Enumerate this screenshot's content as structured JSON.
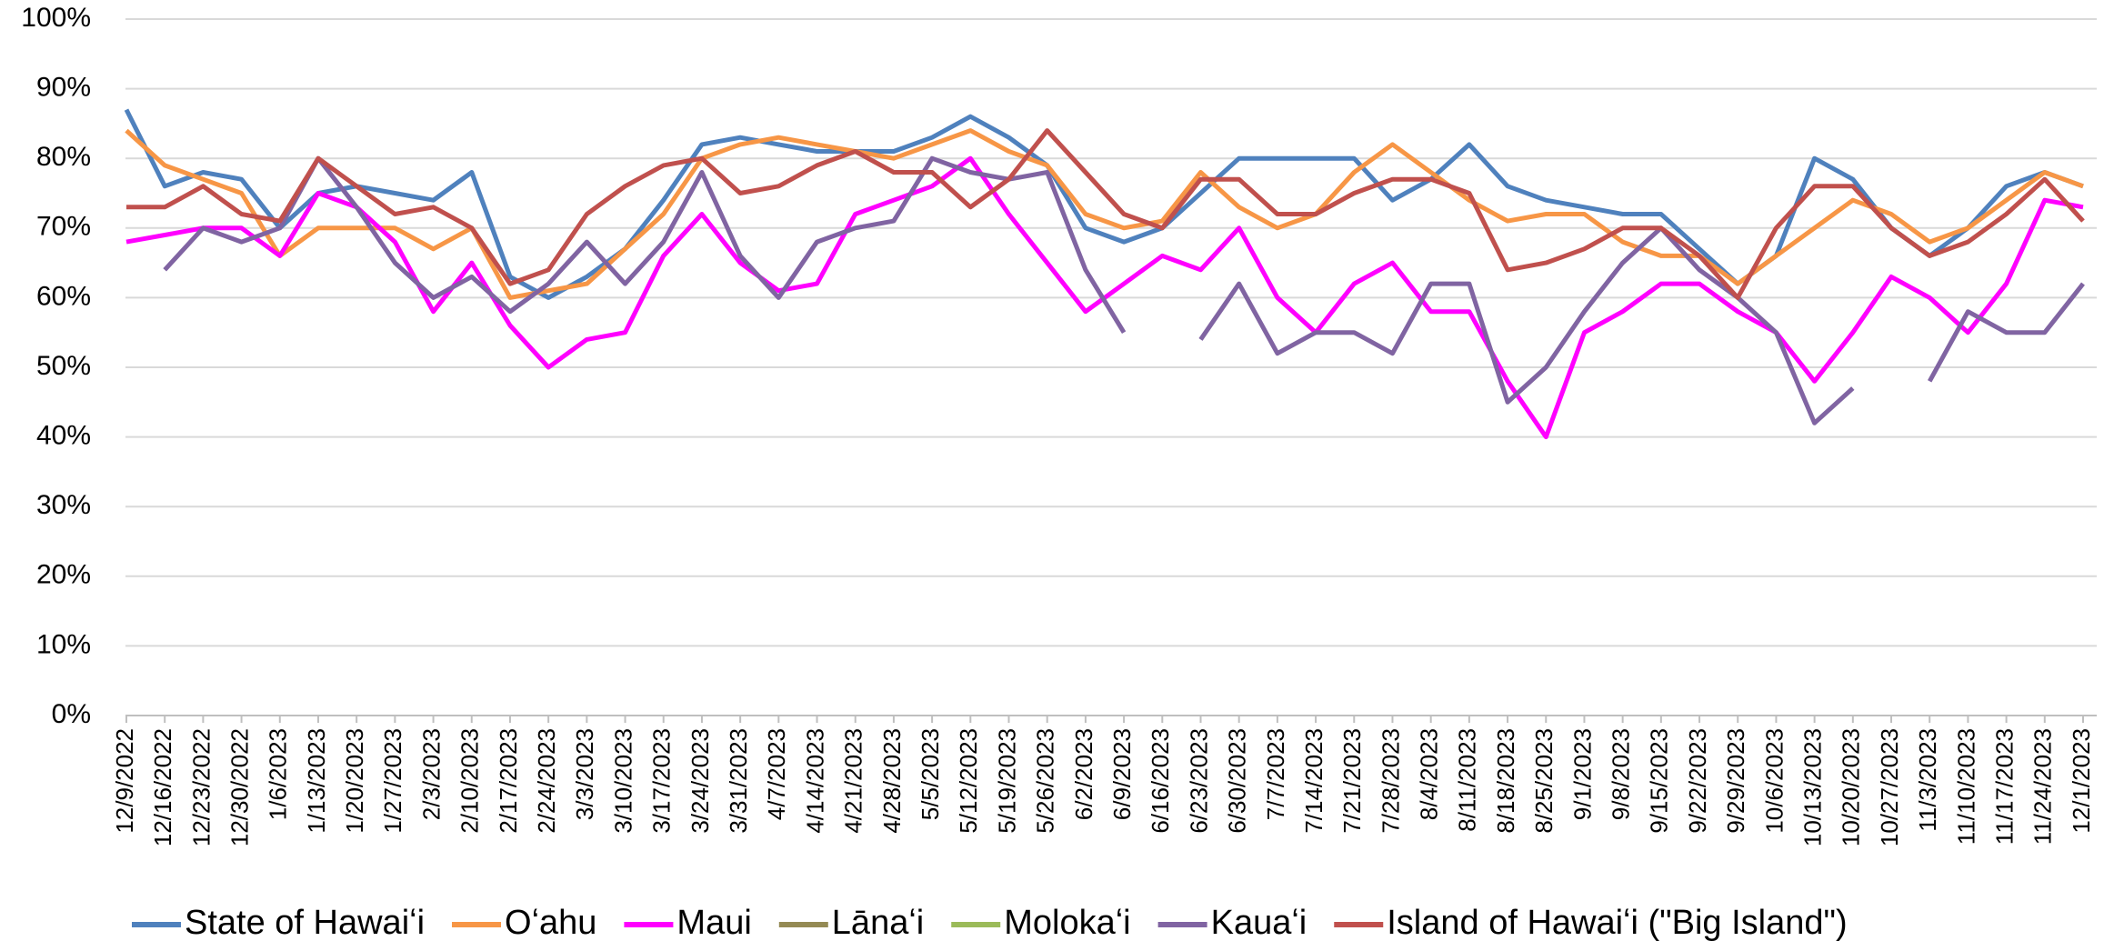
{
  "chart_data": {
    "type": "line",
    "categories": [
      "12/9/2022",
      "12/16/2022",
      "12/23/2022",
      "12/30/2022",
      "1/6/2023",
      "1/13/2023",
      "1/20/2023",
      "1/27/2023",
      "2/3/2023",
      "2/10/2023",
      "2/17/2023",
      "2/24/2023",
      "3/3/2023",
      "3/10/2023",
      "3/17/2023",
      "3/24/2023",
      "3/31/2023",
      "4/7/2023",
      "4/14/2023",
      "4/21/2023",
      "4/28/2023",
      "5/5/2023",
      "5/12/2023",
      "5/19/2023",
      "5/26/2023",
      "6/2/2023",
      "6/9/2023",
      "6/16/2023",
      "6/23/2023",
      "6/30/2023",
      "7/7/2023",
      "7/14/2023",
      "7/21/2023",
      "7/28/2023",
      "8/4/2023",
      "8/11/2023",
      "8/18/2023",
      "8/25/2023",
      "9/1/2023",
      "9/8/2023",
      "9/15/2023",
      "9/22/2023",
      "9/29/2023",
      "10/6/2023",
      "10/13/2023",
      "10/20/2023",
      "10/27/2023",
      "11/3/2023",
      "11/10/2023",
      "11/17/2023",
      "11/24/2023",
      "12/1/2023"
    ],
    "series": [
      {
        "name": "State of Hawaiʻi",
        "color": "#4f81bd",
        "values": [
          87,
          76,
          78,
          77,
          70,
          75,
          76,
          75,
          74,
          78,
          63,
          60,
          63,
          67,
          74,
          82,
          83,
          82,
          81,
          81,
          81,
          83,
          86,
          83,
          79,
          70,
          68,
          70,
          75,
          80,
          80,
          80,
          80,
          74,
          77,
          82,
          76,
          74,
          73,
          72,
          72,
          67,
          62,
          66,
          80,
          77,
          70,
          66,
          70,
          76,
          78,
          76
        ]
      },
      {
        "name": "Oʻahu",
        "color": "#f79646",
        "values": [
          84,
          79,
          77,
          75,
          66,
          70,
          70,
          70,
          67,
          70,
          60,
          61,
          62,
          67,
          72,
          80,
          82,
          83,
          82,
          81,
          80,
          82,
          84,
          81,
          79,
          72,
          70,
          71,
          78,
          73,
          70,
          72,
          78,
          82,
          78,
          74,
          71,
          72,
          72,
          68,
          66,
          66,
          62,
          66,
          70,
          74,
          72,
          68,
          70,
          74,
          78,
          76
        ]
      },
      {
        "name": "Maui",
        "color": "#ff00ff",
        "values": [
          68,
          69,
          70,
          70,
          66,
          75,
          73,
          68,
          58,
          65,
          56,
          50,
          54,
          55,
          66,
          72,
          65,
          61,
          62,
          72,
          74,
          76,
          80,
          72,
          65,
          58,
          62,
          66,
          64,
          70,
          60,
          55,
          62,
          65,
          58,
          58,
          48,
          40,
          55,
          58,
          62,
          62,
          58,
          55,
          48,
          55,
          63,
          60,
          55,
          62,
          74,
          73
        ]
      },
      {
        "name": "Lānaʻi",
        "color": "#948a54",
        "values": [
          null,
          null,
          null,
          null,
          null,
          null,
          null,
          null,
          null,
          null,
          null,
          null,
          null,
          null,
          null,
          null,
          null,
          null,
          null,
          null,
          null,
          null,
          null,
          null,
          null,
          null,
          null,
          null,
          null,
          null,
          null,
          null,
          null,
          null,
          null,
          null,
          null,
          null,
          null,
          null,
          null,
          null,
          null,
          null,
          null,
          null,
          null,
          null,
          null,
          null,
          null,
          null
        ]
      },
      {
        "name": "Molokaʻi",
        "color": "#9bbb59",
        "values": [
          null,
          null,
          null,
          null,
          null,
          null,
          null,
          null,
          null,
          null,
          null,
          null,
          null,
          null,
          null,
          null,
          null,
          null,
          null,
          null,
          null,
          null,
          null,
          null,
          null,
          null,
          null,
          null,
          null,
          null,
          null,
          null,
          null,
          null,
          null,
          null,
          null,
          null,
          null,
          null,
          null,
          null,
          null,
          null,
          null,
          null,
          null,
          null,
          null,
          null,
          null,
          null
        ]
      },
      {
        "name": "Kauaʻi",
        "color": "#8064a2",
        "values": [
          null,
          64,
          70,
          68,
          70,
          80,
          73,
          65,
          60,
          63,
          58,
          62,
          68,
          62,
          68,
          78,
          66,
          60,
          68,
          70,
          71,
          80,
          78,
          77,
          78,
          64,
          55,
          null,
          54,
          62,
          52,
          55,
          55,
          52,
          62,
          62,
          45,
          50,
          58,
          65,
          70,
          64,
          60,
          55,
          42,
          47,
          null,
          48,
          58,
          55,
          55,
          62
        ]
      },
      {
        "name": "Island of Hawaiʻi (\"Big Island\")",
        "color": "#c0504d",
        "values": [
          73,
          73,
          76,
          72,
          71,
          80,
          76,
          72,
          73,
          70,
          62,
          64,
          72,
          76,
          79,
          80,
          75,
          76,
          79,
          81,
          78,
          78,
          73,
          77,
          84,
          78,
          72,
          70,
          77,
          77,
          72,
          72,
          75,
          77,
          77,
          75,
          64,
          65,
          67,
          70,
          70,
          66,
          60,
          70,
          76,
          76,
          70,
          66,
          68,
          72,
          77,
          71
        ]
      }
    ],
    "ylim": [
      0,
      100
    ],
    "yticks": [
      {
        "value": 0,
        "label": "0%"
      },
      {
        "value": 10,
        "label": "10%"
      },
      {
        "value": 20,
        "label": "20%"
      },
      {
        "value": 30,
        "label": "30%"
      },
      {
        "value": 40,
        "label": "40%"
      },
      {
        "value": 50,
        "label": "50%"
      },
      {
        "value": 60,
        "label": "60%"
      },
      {
        "value": 70,
        "label": "70%"
      },
      {
        "value": 80,
        "label": "80%"
      },
      {
        "value": 90,
        "label": "90%"
      },
      {
        "value": 100,
        "label": "100%"
      }
    ],
    "grid": true,
    "legend": "bottom"
  }
}
